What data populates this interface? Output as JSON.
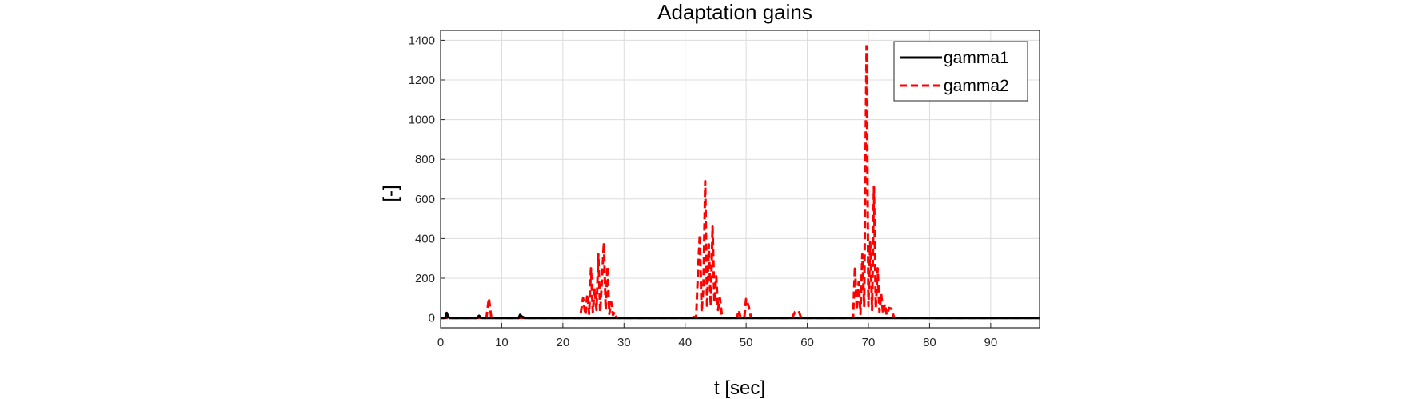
{
  "chart_data": {
    "type": "line",
    "title": "Adaptation gains",
    "xlabel": "t [sec]",
    "ylabel": "[-]",
    "xlim": [
      0,
      98
    ],
    "ylim": [
      -50,
      1450
    ],
    "x_ticks": [
      "0",
      "10",
      "20",
      "30",
      "40",
      "50",
      "60",
      "70",
      "80",
      "90"
    ],
    "y_ticks": [
      "0",
      "200",
      "400",
      "600",
      "800",
      "1000",
      "1200",
      "1400"
    ],
    "grid": true,
    "legend_position": "top-right",
    "series": [
      {
        "name": "gamma1",
        "color": "#000000",
        "style": "solid",
        "points": [
          [
            0,
            0
          ],
          [
            0.8,
            0
          ],
          [
            1.0,
            25
          ],
          [
            1.2,
            5
          ],
          [
            1.5,
            0
          ],
          [
            6.0,
            0
          ],
          [
            6.3,
            10
          ],
          [
            6.6,
            0
          ],
          [
            12.8,
            0
          ],
          [
            13.0,
            15
          ],
          [
            13.3,
            6
          ],
          [
            13.7,
            0
          ],
          [
            98,
            0
          ]
        ]
      },
      {
        "name": "gamma2",
        "color": "#ff0000",
        "style": "dashed",
        "points": [
          [
            0,
            0
          ],
          [
            7.5,
            0
          ],
          [
            7.9,
            100
          ],
          [
            8.3,
            0
          ],
          [
            22.8,
            0
          ],
          [
            23.3,
            100
          ],
          [
            23.7,
            15
          ],
          [
            24.0,
            120
          ],
          [
            24.3,
            20
          ],
          [
            24.6,
            250
          ],
          [
            24.9,
            30
          ],
          [
            25.2,
            150
          ],
          [
            25.5,
            40
          ],
          [
            25.8,
            320
          ],
          [
            26.1,
            30
          ],
          [
            26.4,
            200
          ],
          [
            26.7,
            380
          ],
          [
            27.0,
            40
          ],
          [
            27.3,
            260
          ],
          [
            27.6,
            20
          ],
          [
            27.9,
            80
          ],
          [
            28.2,
            15
          ],
          [
            28.5,
            30
          ],
          [
            28.8,
            0
          ],
          [
            41.0,
            0
          ],
          [
            41.5,
            5
          ],
          [
            41.8,
            0
          ],
          [
            42.1,
            230
          ],
          [
            42.4,
            420
          ],
          [
            42.7,
            30
          ],
          [
            43.0,
            150
          ],
          [
            43.3,
            690
          ],
          [
            43.6,
            50
          ],
          [
            43.9,
            370
          ],
          [
            44.2,
            60
          ],
          [
            44.5,
            460
          ],
          [
            44.8,
            80
          ],
          [
            45.1,
            210
          ],
          [
            45.4,
            40
          ],
          [
            45.7,
            100
          ],
          [
            46.0,
            20
          ],
          [
            46.3,
            0
          ],
          [
            48.5,
            0
          ],
          [
            48.8,
            40
          ],
          [
            49.1,
            0
          ],
          [
            49.7,
            0
          ],
          [
            50.0,
            95
          ],
          [
            50.4,
            60
          ],
          [
            50.8,
            0
          ],
          [
            57.5,
            0
          ],
          [
            58.0,
            30
          ],
          [
            58.6,
            35
          ],
          [
            59.0,
            0
          ],
          [
            67.5,
            0
          ],
          [
            67.8,
            260
          ],
          [
            68.1,
            40
          ],
          [
            68.4,
            180
          ],
          [
            68.7,
            20
          ],
          [
            69.0,
            320
          ],
          [
            69.3,
            60
          ],
          [
            69.7,
            1370
          ],
          [
            70.0,
            60
          ],
          [
            70.3,
            380
          ],
          [
            70.6,
            40
          ],
          [
            70.9,
            660
          ],
          [
            71.2,
            50
          ],
          [
            71.5,
            250
          ],
          [
            71.8,
            30
          ],
          [
            72.1,
            120
          ],
          [
            72.4,
            20
          ],
          [
            72.7,
            70
          ],
          [
            73.0,
            15
          ],
          [
            73.4,
            50
          ],
          [
            73.8,
            45
          ],
          [
            74.2,
            0
          ],
          [
            98,
            0
          ]
        ]
      }
    ]
  }
}
